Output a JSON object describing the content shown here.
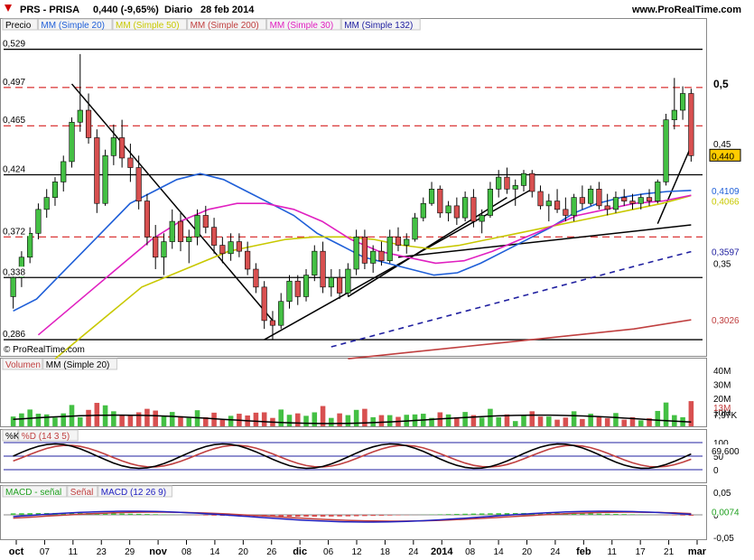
{
  "header": {
    "instrument": "PRS - PRISA",
    "quote": "0,440 (-9,65%)",
    "period": "Diario",
    "date": "28 feb 2014",
    "site": "www.ProRealTime.com",
    "arrow_color": "#d00000"
  },
  "price_panel": {
    "legend": [
      {
        "label": "Precio",
        "color": "#000000"
      },
      {
        "label": "MM (Simple 20)",
        "color": "#1f5fd8"
      },
      {
        "label": "MM (Simple 50)",
        "color": "#c8c800"
      },
      {
        "label": "MM (Simple 200)",
        "color": "#c04040"
      },
      {
        "label": "MM (Simple 30)",
        "color": "#e020c0"
      },
      {
        "label": "MM (Simple 132)",
        "color": "#2020a0"
      }
    ],
    "left_ticks": [
      "0,529",
      "0,497",
      "0,465",
      "0,424",
      "0,372",
      "0,338",
      "0,286"
    ],
    "right_ticks": [
      "0,5",
      "0,45",
      "0,35"
    ],
    "value_badges": [
      {
        "text": "0,440",
        "color": "#000000",
        "bg": "#ffcc00"
      },
      {
        "text": "0,4068",
        "color": "#e020c0"
      },
      {
        "text": "0,4066",
        "color": "#c8c800"
      },
      {
        "text": "0,4109",
        "color": "#1f5fd8"
      },
      {
        "text": "0,3597",
        "color": "#2020a0"
      },
      {
        "text": "0,3026",
        "color": "#c04040"
      }
    ],
    "watermark": "© ProRealTime.com",
    "horizontal_levels_solid": [
      0.529,
      0.424,
      0.338,
      0.286
    ],
    "horizontal_levels_dashed": [
      0.497,
      0.465,
      0.372
    ]
  },
  "volume_panel": {
    "legend": [
      {
        "label": "Volumen",
        "color": "#c04040"
      },
      {
        "label": "MM (Simple 20)",
        "color": "#000000"
      }
    ],
    "right_ticks": [
      "40M",
      "30M",
      "20M",
      "10M"
    ],
    "badges": [
      "13M",
      "7,97K"
    ]
  },
  "stoch_panel": {
    "legend": [
      {
        "label": "%K",
        "color": "#000000"
      },
      {
        "label": "%D (14 3 5)",
        "color": "#c04040"
      }
    ],
    "right_ticks": [
      "100",
      "50",
      "0"
    ],
    "badge": "69,600"
  },
  "macd_panel": {
    "legend": [
      {
        "label": "MACD - señal",
        "color": "#20a020"
      },
      {
        "label": "Señal",
        "color": "#c04040"
      },
      {
        "label": "MACD (12 26 9)",
        "color": "#2020c0"
      }
    ],
    "right_ticks": [
      "0,05",
      "0",
      "-0,05"
    ],
    "badge": "0,0074"
  },
  "x_axis": {
    "labels": [
      "oct",
      "07",
      "11",
      "23",
      "29",
      "nov",
      "08",
      "14",
      "20",
      "26",
      "dic",
      "06",
      "12",
      "18",
      "24",
      "2014",
      "08",
      "14",
      "20",
      "24",
      "feb",
      "11",
      "17",
      "21",
      "mar"
    ]
  },
  "chart_data": {
    "type": "candlestick",
    "period": "Diario",
    "x_start_label": "oct",
    "x_end_label": "mar",
    "ylim": [
      0.28,
      0.54
    ],
    "candles": [
      [
        0.322,
        0.345,
        0.312,
        0.338
      ],
      [
        0.338,
        0.36,
        0.33,
        0.355
      ],
      [
        0.355,
        0.38,
        0.35,
        0.375
      ],
      [
        0.375,
        0.4,
        0.37,
        0.395
      ],
      [
        0.395,
        0.412,
        0.388,
        0.405
      ],
      [
        0.405,
        0.422,
        0.398,
        0.418
      ],
      [
        0.418,
        0.44,
        0.41,
        0.435
      ],
      [
        0.435,
        0.472,
        0.43,
        0.468
      ],
      [
        0.468,
        0.525,
        0.46,
        0.478
      ],
      [
        0.478,
        0.492,
        0.45,
        0.455
      ],
      [
        0.455,
        0.462,
        0.392,
        0.4
      ],
      [
        0.4,
        0.445,
        0.398,
        0.44
      ],
      [
        0.44,
        0.466,
        0.432,
        0.455
      ],
      [
        0.455,
        0.47,
        0.43,
        0.438
      ],
      [
        0.438,
        0.45,
        0.418,
        0.43
      ],
      [
        0.43,
        0.44,
        0.395,
        0.402
      ],
      [
        0.402,
        0.408,
        0.365,
        0.372
      ],
      [
        0.372,
        0.382,
        0.345,
        0.355
      ],
      [
        0.355,
        0.375,
        0.34,
        0.368
      ],
      [
        0.368,
        0.395,
        0.362,
        0.385
      ],
      [
        0.385,
        0.392,
        0.36,
        0.368
      ],
      [
        0.368,
        0.378,
        0.35,
        0.372
      ],
      [
        0.372,
        0.395,
        0.365,
        0.39
      ],
      [
        0.39,
        0.398,
        0.375,
        0.38
      ],
      [
        0.38,
        0.388,
        0.358,
        0.365
      ],
      [
        0.365,
        0.372,
        0.35,
        0.358
      ],
      [
        0.358,
        0.375,
        0.352,
        0.368
      ],
      [
        0.368,
        0.375,
        0.355,
        0.36
      ],
      [
        0.36,
        0.368,
        0.34,
        0.345
      ],
      [
        0.345,
        0.35,
        0.325,
        0.33
      ],
      [
        0.33,
        0.335,
        0.295,
        0.302
      ],
      [
        0.302,
        0.31,
        0.286,
        0.298
      ],
      [
        0.298,
        0.325,
        0.295,
        0.318
      ],
      [
        0.318,
        0.34,
        0.312,
        0.335
      ],
      [
        0.335,
        0.34,
        0.315,
        0.322
      ],
      [
        0.322,
        0.345,
        0.318,
        0.34
      ],
      [
        0.34,
        0.365,
        0.335,
        0.36
      ],
      [
        0.36,
        0.368,
        0.325,
        0.33
      ],
      [
        0.33,
        0.345,
        0.322,
        0.338
      ],
      [
        0.338,
        0.345,
        0.32,
        0.325
      ],
      [
        0.325,
        0.35,
        0.322,
        0.345
      ],
      [
        0.345,
        0.378,
        0.34,
        0.372
      ],
      [
        0.372,
        0.378,
        0.345,
        0.35
      ],
      [
        0.35,
        0.365,
        0.342,
        0.36
      ],
      [
        0.36,
        0.368,
        0.348,
        0.352
      ],
      [
        0.352,
        0.378,
        0.35,
        0.372
      ],
      [
        0.372,
        0.38,
        0.36,
        0.365
      ],
      [
        0.365,
        0.375,
        0.358,
        0.37
      ],
      [
        0.37,
        0.392,
        0.368,
        0.388
      ],
      [
        0.388,
        0.405,
        0.385,
        0.4
      ],
      [
        0.4,
        0.418,
        0.398,
        0.412
      ],
      [
        0.412,
        0.415,
        0.388,
        0.392
      ],
      [
        0.392,
        0.402,
        0.385,
        0.398
      ],
      [
        0.398,
        0.405,
        0.382,
        0.388
      ],
      [
        0.388,
        0.41,
        0.385,
        0.405
      ],
      [
        0.405,
        0.412,
        0.38,
        0.385
      ],
      [
        0.385,
        0.395,
        0.375,
        0.39
      ],
      [
        0.39,
        0.418,
        0.388,
        0.412
      ],
      [
        0.412,
        0.428,
        0.405,
        0.422
      ],
      [
        0.422,
        0.43,
        0.408,
        0.412
      ],
      [
        0.412,
        0.42,
        0.398,
        0.415
      ],
      [
        0.415,
        0.428,
        0.41,
        0.425
      ],
      [
        0.425,
        0.428,
        0.405,
        0.41
      ],
      [
        0.41,
        0.415,
        0.395,
        0.398
      ],
      [
        0.398,
        0.408,
        0.385,
        0.402
      ],
      [
        0.402,
        0.412,
        0.392,
        0.395
      ],
      [
        0.395,
        0.405,
        0.385,
        0.39
      ],
      [
        0.39,
        0.408,
        0.385,
        0.405
      ],
      [
        0.405,
        0.415,
        0.395,
        0.4
      ],
      [
        0.4,
        0.415,
        0.398,
        0.412
      ],
      [
        0.412,
        0.418,
        0.395,
        0.398
      ],
      [
        0.398,
        0.408,
        0.39,
        0.395
      ],
      [
        0.395,
        0.41,
        0.392,
        0.405
      ],
      [
        0.405,
        0.412,
        0.398,
        0.402
      ],
      [
        0.402,
        0.408,
        0.395,
        0.4
      ],
      [
        0.4,
        0.408,
        0.395,
        0.405
      ],
      [
        0.405,
        0.412,
        0.398,
        0.402
      ],
      [
        0.402,
        0.42,
        0.4,
        0.418
      ],
      [
        0.418,
        0.475,
        0.415,
        0.47
      ],
      [
        0.47,
        0.505,
        0.462,
        0.478
      ],
      [
        0.478,
        0.498,
        0.47,
        0.492
      ],
      [
        0.492,
        0.496,
        0.435,
        0.44
      ]
    ],
    "series": [
      {
        "name": "MM (Simple 20)",
        "color": "#1f5fd8",
        "values": [
          0.31,
          0.32,
          0.34,
          0.36,
          0.38,
          0.4,
          0.41,
          0.42,
          0.425,
          0.42,
          0.41,
          0.4,
          0.39,
          0.375,
          0.365,
          0.355,
          0.35,
          0.345,
          0.34,
          0.342,
          0.35,
          0.36,
          0.37,
          0.38,
          0.392,
          0.4,
          0.405,
          0.408,
          0.41,
          0.4109
        ]
      },
      {
        "name": "MM (Simple 50)",
        "color": "#c8c800",
        "values": [
          0.27,
          0.29,
          0.31,
          0.33,
          0.34,
          0.35,
          0.36,
          0.365,
          0.37,
          0.372,
          0.372,
          0.37,
          0.365,
          0.362,
          0.365,
          0.37,
          0.375,
          0.38,
          0.385,
          0.39,
          0.395,
          0.4,
          0.4066
        ]
      },
      {
        "name": "MM (Simple 30)",
        "color": "#e020c0",
        "values": [
          0.29,
          0.31,
          0.33,
          0.35,
          0.37,
          0.385,
          0.395,
          0.4,
          0.4,
          0.395,
          0.385,
          0.37,
          0.36,
          0.355,
          0.35,
          0.352,
          0.36,
          0.37,
          0.38,
          0.39,
          0.395,
          0.4,
          0.402,
          0.4068
        ]
      },
      {
        "name": "MM (Simple 132)",
        "color": "#2020a0",
        "values": [
          0.28,
          0.29,
          0.3,
          0.31,
          0.32,
          0.33,
          0.34,
          0.35,
          0.3597
        ]
      },
      {
        "name": "MM (Simple 200)",
        "color": "#c04040",
        "values": [
          0.27,
          0.275,
          0.28,
          0.285,
          0.29,
          0.295,
          0.3026
        ]
      }
    ]
  }
}
